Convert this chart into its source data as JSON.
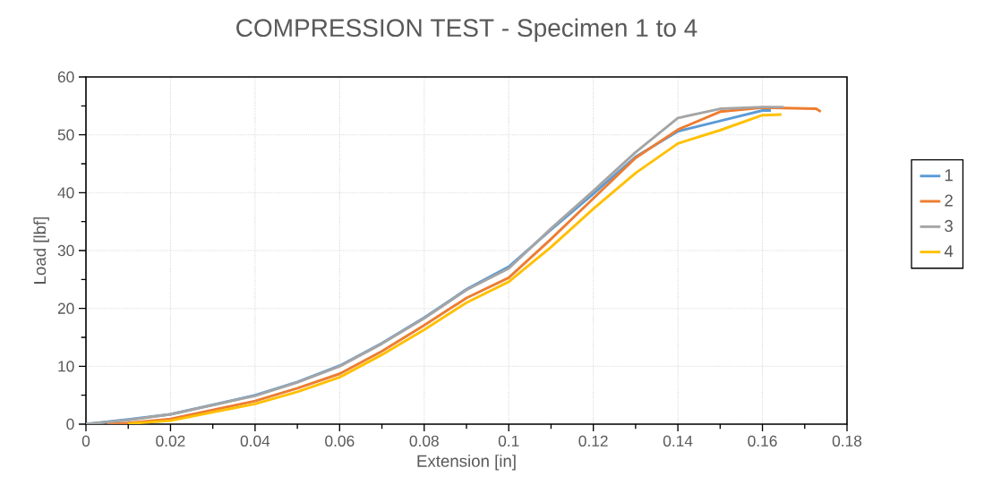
{
  "chart_data": {
    "type": "line",
    "title": "COMPRESSION TEST - Specimen 1 to 4",
    "xlabel": "Extension [in]",
    "ylabel": "Load [lbf]",
    "xlim": [
      0,
      0.18
    ],
    "xticks": [
      0,
      0.02,
      0.04,
      0.06,
      0.08,
      0.1,
      0.12,
      0.14,
      0.16,
      0.18
    ],
    "ylim": [
      0,
      60
    ],
    "yticks": [
      0,
      10,
      20,
      30,
      40,
      50,
      60
    ],
    "grid": true,
    "legend": "right",
    "marker": "none",
    "line_style": "solid",
    "series": [
      {
        "name": "1",
        "color": "#5b9bd5",
        "x": [
          0,
          0.01,
          0.02,
          0.04,
          0.05,
          0.06,
          0.07,
          0.08,
          0.09,
          0.1,
          0.11,
          0.12,
          0.13,
          0.14,
          0.15,
          0.16,
          0.162
        ],
        "values": [
          0,
          0.8,
          1.7,
          5.0,
          7.3,
          10.1,
          14,
          18.4,
          23.3,
          27.2,
          33.6,
          39.8,
          46.2,
          50.6,
          52.4,
          54.2,
          54.2
        ]
      },
      {
        "name": "2",
        "color": "#ed7d31",
        "x": [
          0.005,
          0.01,
          0.02,
          0.04,
          0.05,
          0.06,
          0.07,
          0.08,
          0.09,
          0.1,
          0.11,
          0.12,
          0.13,
          0.14,
          0.15,
          0.16,
          0.1727,
          0.1738
        ],
        "values": [
          0,
          0.2,
          0.9,
          4.0,
          6.2,
          8.7,
          12.6,
          17.1,
          21.8,
          25.3,
          32,
          39,
          46,
          50.9,
          54,
          54.7,
          54.5,
          54
        ]
      },
      {
        "name": "3",
        "color": "#a5a5a5",
        "x": [
          0,
          0.01,
          0.02,
          0.04,
          0.05,
          0.06,
          0.07,
          0.08,
          0.09,
          0.1,
          0.11,
          0.12,
          0.13,
          0.14,
          0.15,
          0.16,
          0.165
        ],
        "values": [
          0,
          0.7,
          1.7,
          4.9,
          7.2,
          10,
          13.9,
          18.3,
          23.2,
          26.9,
          33.8,
          40.3,
          47,
          52.9,
          54.5,
          54.8,
          54.8
        ]
      },
      {
        "name": "4",
        "color": "#ffc000",
        "x": [
          0.01,
          0.02,
          0.04,
          0.05,
          0.06,
          0.07,
          0.08,
          0.09,
          0.1,
          0.11,
          0.12,
          0.13,
          0.14,
          0.15,
          0.16,
          0.1645
        ],
        "values": [
          0.1,
          0.6,
          3.5,
          5.6,
          8.1,
          12,
          16.3,
          21,
          24.6,
          30.6,
          37.2,
          43.4,
          48.5,
          50.8,
          53.4,
          53.5
        ]
      }
    ]
  }
}
